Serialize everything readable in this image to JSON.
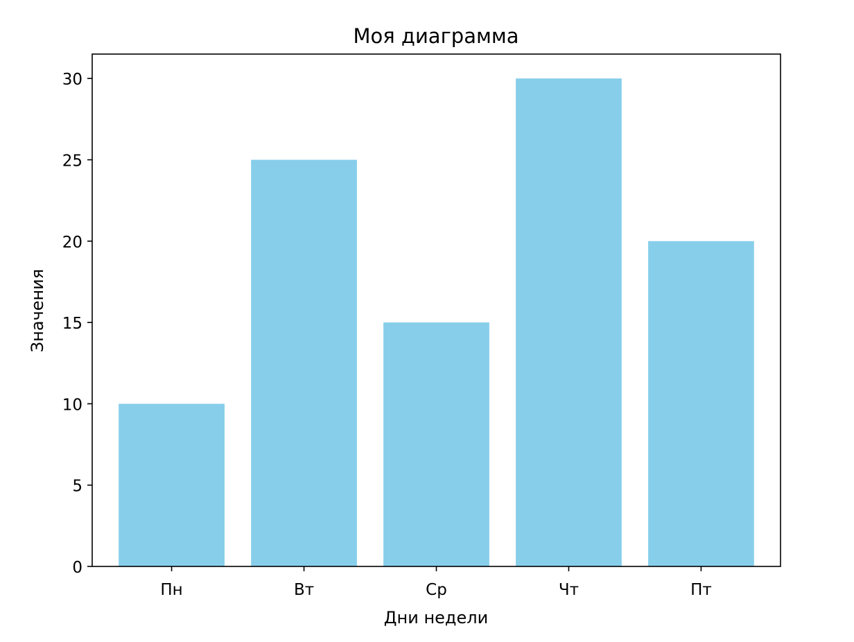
{
  "chart_data": {
    "type": "bar",
    "title": "Моя диаграмма",
    "xlabel": "Дни недели",
    "ylabel": "Значения",
    "categories": [
      "Пн",
      "Вт",
      "Ср",
      "Чт",
      "Пт"
    ],
    "values": [
      10,
      25,
      15,
      30,
      20
    ],
    "ylim": [
      0,
      31.5
    ],
    "yticks": [
      0,
      5,
      10,
      15,
      20,
      25,
      30
    ],
    "bar_color": "#87CEEB",
    "grid": false,
    "legend": "none"
  }
}
